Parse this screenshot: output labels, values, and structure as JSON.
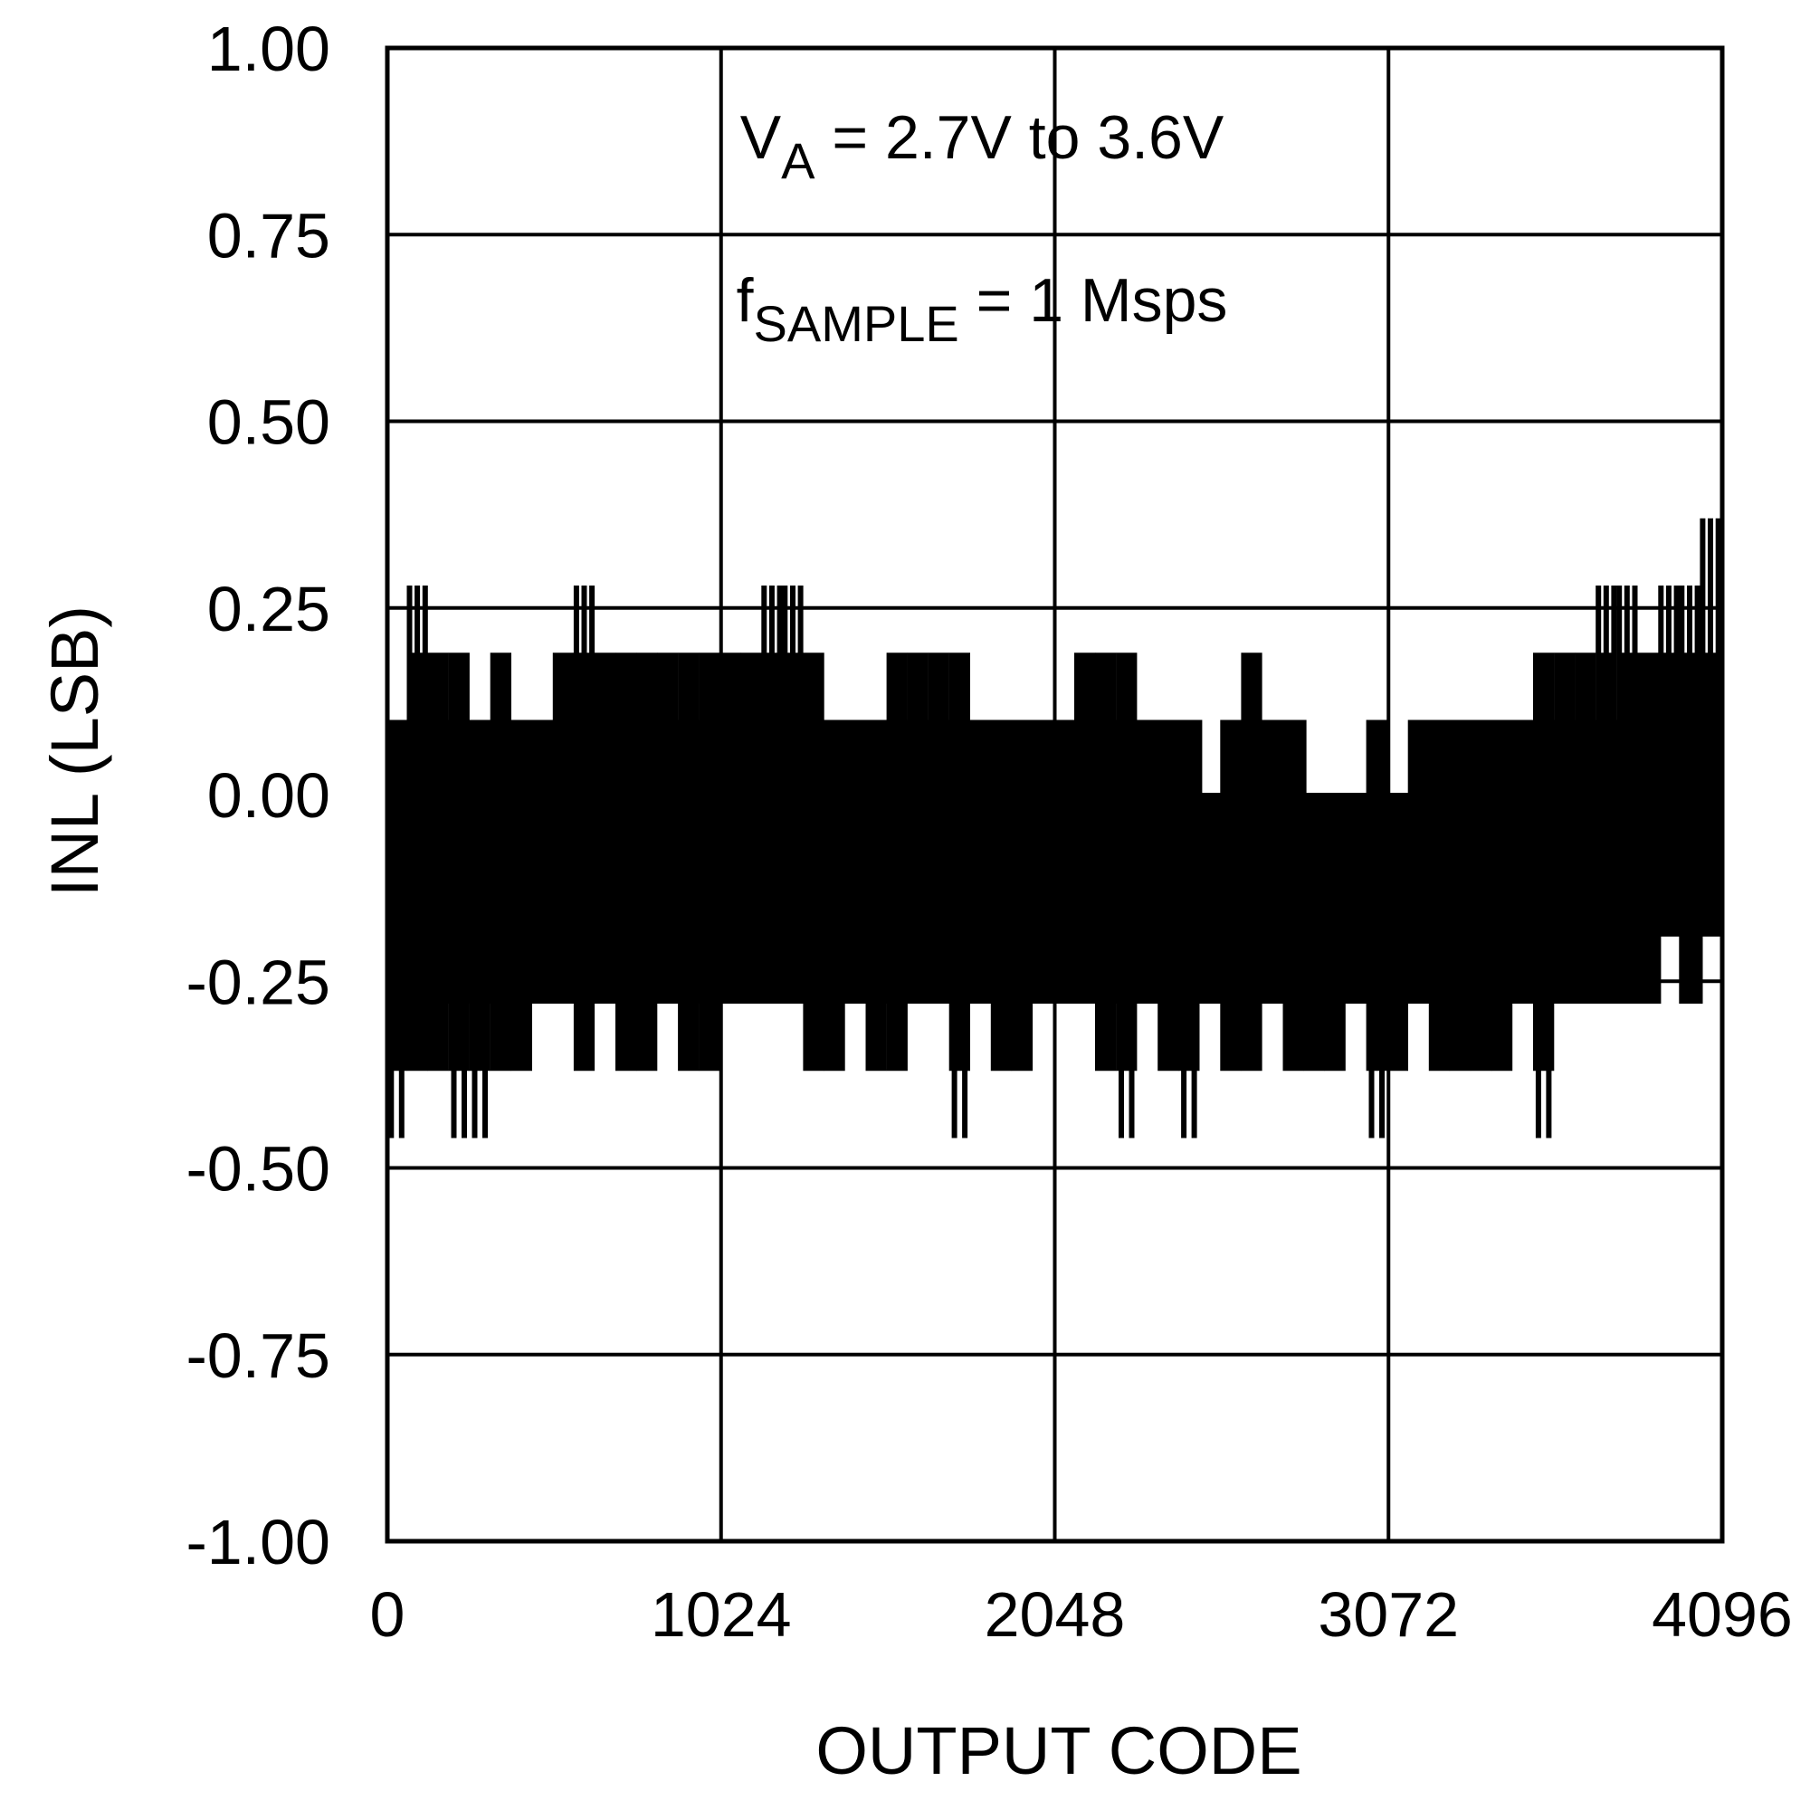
{
  "chart_data": {
    "type": "line",
    "title": "",
    "xlabel": "OUTPUT CODE",
    "ylabel": "INL (LSB)",
    "xlim": [
      0,
      4096
    ],
    "ylim": [
      -1.0,
      1.0
    ],
    "x_ticks": [
      0,
      1024,
      2048,
      3072,
      4096
    ],
    "x_tick_labels": [
      "0",
      "1024",
      "2048",
      "3072",
      "4096"
    ],
    "y_ticks": [
      1.0,
      0.75,
      0.5,
      0.25,
      0.0,
      -0.25,
      -0.5,
      -0.75,
      -1.0
    ],
    "y_tick_labels": [
      "1.00",
      "0.75",
      "0.50",
      "0.25",
      "0.00",
      "-0.25",
      "-0.50",
      "-0.75",
      "-1.00"
    ],
    "grid": true,
    "legend": "none",
    "line_color": "#000000",
    "annotations": [
      {
        "main": "V",
        "sub": "A",
        "rest": " = 2.7V to 3.6V"
      },
      {
        "main": "f",
        "sub": "SAMPLE",
        "rest": " = 1 Msps"
      }
    ],
    "series": [
      {
        "envelope": {
          "x": [
            0,
            64,
            128,
            192,
            256,
            320,
            384,
            448,
            512,
            576,
            640,
            704,
            768,
            832,
            896,
            960,
            1024,
            1088,
            1152,
            1216,
            1280,
            1344,
            1408,
            1472,
            1536,
            1600,
            1664,
            1728,
            1792,
            1856,
            1920,
            1984,
            2048,
            2112,
            2176,
            2240,
            2304,
            2368,
            2432,
            2496,
            2560,
            2624,
            2688,
            2752,
            2816,
            2880,
            2944,
            3008,
            3072,
            3136,
            3200,
            3264,
            3328,
            3392,
            3456,
            3520,
            3584,
            3648,
            3712,
            3776,
            3840,
            3904,
            3968,
            4032,
            4096
          ],
          "max": [
            0.1,
            0.28,
            0.19,
            0.19,
            0.1,
            0.19,
            0.1,
            0.1,
            0.19,
            0.28,
            0.19,
            0.19,
            0.19,
            0.19,
            0.19,
            0.19,
            0.19,
            0.19,
            0.28,
            0.28,
            0.19,
            0.1,
            0.1,
            0.1,
            0.19,
            0.19,
            0.19,
            0.19,
            0.1,
            0.1,
            0.1,
            0.1,
            0.1,
            0.19,
            0.19,
            0.19,
            0.1,
            0.1,
            0.1,
            0.0,
            0.1,
            0.19,
            0.1,
            0.1,
            0.0,
            0.0,
            0.0,
            0.1,
            0.0,
            0.1,
            0.1,
            0.1,
            0.1,
            0.1,
            0.1,
            0.19,
            0.19,
            0.19,
            0.28,
            0.28,
            0.19,
            0.28,
            0.28,
            0.37,
            0.46
          ],
          "min": [
            -0.46,
            -0.37,
            -0.37,
            -0.46,
            -0.46,
            -0.37,
            -0.37,
            -0.28,
            -0.28,
            -0.37,
            -0.28,
            -0.37,
            -0.37,
            -0.28,
            -0.37,
            -0.37,
            -0.28,
            -0.28,
            -0.28,
            -0.28,
            -0.37,
            -0.37,
            -0.28,
            -0.37,
            -0.37,
            -0.28,
            -0.28,
            -0.46,
            -0.28,
            -0.37,
            -0.37,
            -0.28,
            -0.28,
            -0.28,
            -0.37,
            -0.46,
            -0.28,
            -0.37,
            -0.46,
            -0.28,
            -0.37,
            -0.37,
            -0.28,
            -0.37,
            -0.37,
            -0.37,
            -0.28,
            -0.46,
            -0.37,
            -0.28,
            -0.37,
            -0.37,
            -0.37,
            -0.37,
            -0.28,
            -0.46,
            -0.28,
            -0.28,
            -0.28,
            -0.28,
            -0.28,
            -0.19,
            -0.28,
            -0.19,
            -0.1
          ]
        }
      }
    ]
  }
}
